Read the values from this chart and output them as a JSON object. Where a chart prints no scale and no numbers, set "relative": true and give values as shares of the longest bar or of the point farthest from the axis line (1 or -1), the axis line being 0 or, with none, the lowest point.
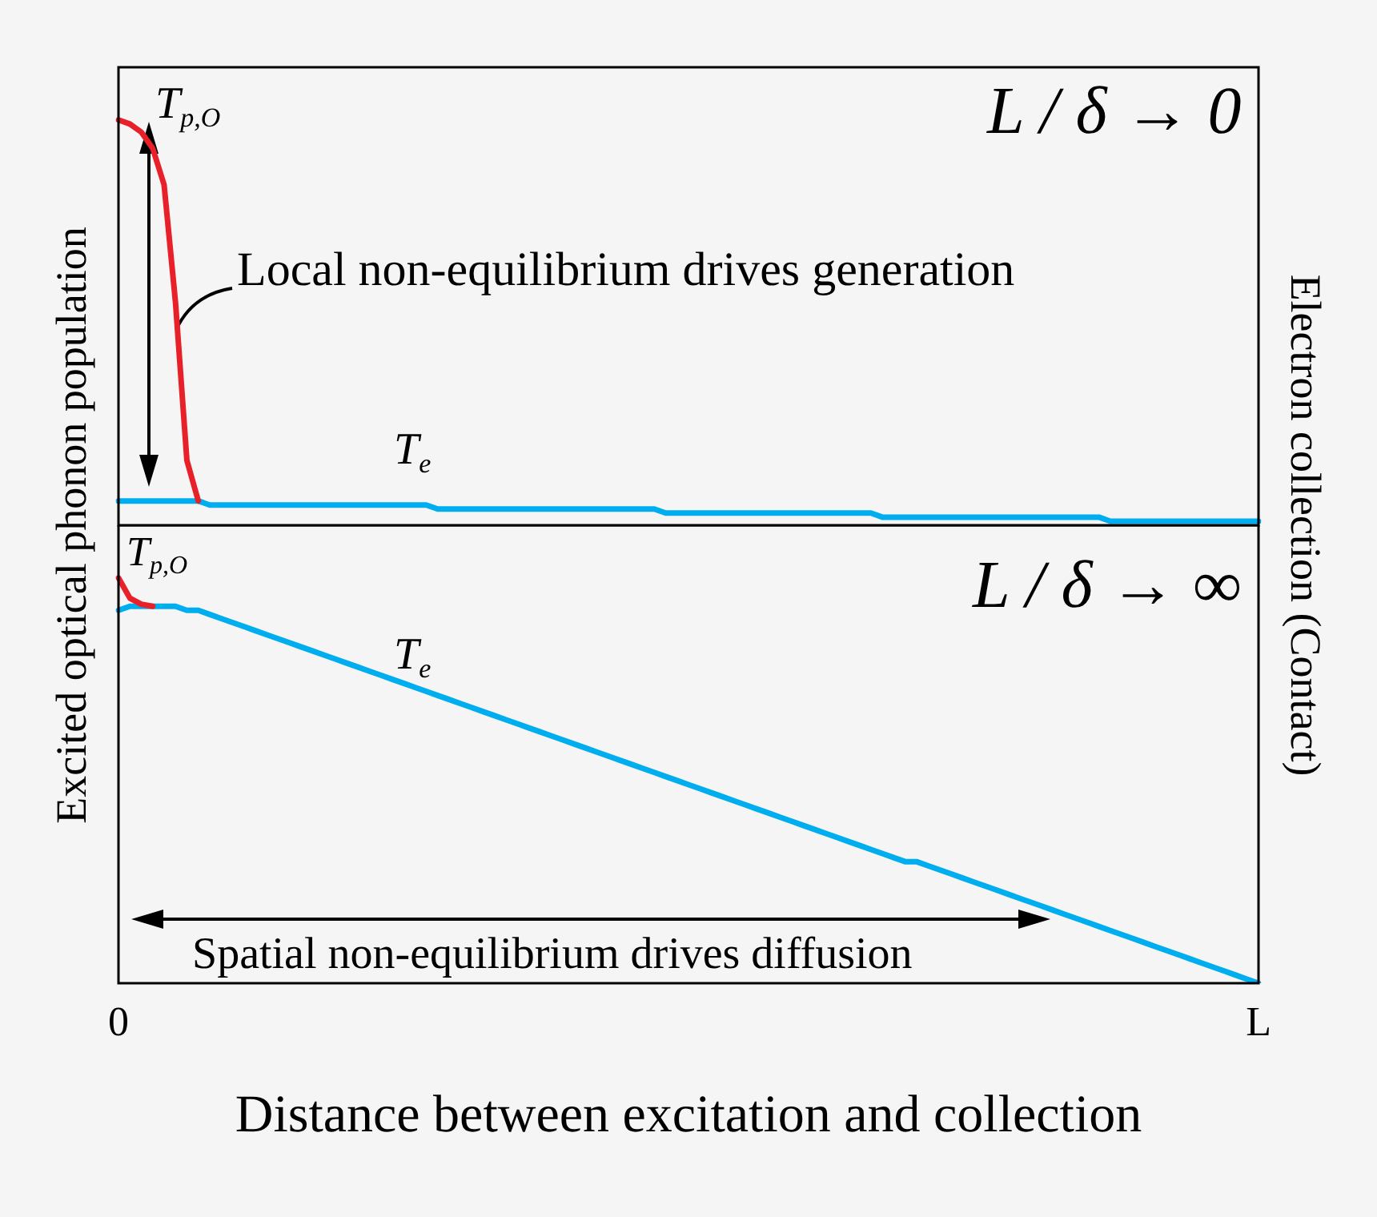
{
  "chart_data": [
    {
      "type": "line",
      "relative": true,
      "ylabel": "Excited optical phonon population",
      "y2label": "Electron collection (Contact)",
      "tick_labels": false,
      "legend": false,
      "grid": false,
      "categories": [
        null,
        null,
        null,
        null,
        null,
        null,
        null,
        null,
        null,
        null,
        null,
        null,
        null,
        null,
        null,
        null,
        null,
        null,
        null,
        null,
        null,
        null,
        null,
        null,
        null,
        null,
        null,
        null,
        null,
        null,
        null,
        null,
        null,
        null,
        null,
        null,
        null,
        null,
        null,
        null,
        null,
        null,
        null,
        null,
        null,
        null,
        null,
        null,
        null,
        null,
        null,
        null,
        null,
        null,
        null,
        null,
        null,
        null,
        null,
        null,
        null,
        null,
        null,
        null,
        null,
        null,
        null,
        null,
        null,
        null,
        null,
        null,
        null,
        null,
        null,
        null,
        null,
        null,
        null,
        null,
        null,
        null,
        null,
        null,
        null,
        null,
        null,
        null,
        null,
        null,
        null,
        null,
        null,
        null,
        null,
        null,
        null,
        null,
        null,
        null,
        null
      ],
      "annotations": [
        "L / δ → 0",
        "Local non-equilibrium drives generation",
        "T$_{p,O}$",
        "T$_{e}$"
      ],
      "series": [
        {
          "color": "#e8202a",
          "values": [
            1,
            0.99,
            0.97,
            0.93,
            0.84,
            0.55,
            0.16,
            0.06,
            null,
            null,
            null,
            null,
            null,
            null,
            null,
            null,
            null,
            null,
            null,
            null,
            null,
            null,
            null,
            null,
            null,
            null,
            null,
            null,
            null,
            null,
            null,
            null,
            null,
            null,
            null,
            null,
            null,
            null,
            null,
            null,
            null,
            null,
            null,
            null,
            null,
            null,
            null,
            null,
            null,
            null,
            null,
            null,
            null,
            null,
            null,
            null,
            null,
            null,
            null,
            null,
            null,
            null,
            null,
            null,
            null,
            null,
            null,
            null,
            null,
            null,
            null,
            null,
            null,
            null,
            null,
            null,
            null,
            null,
            null,
            null,
            null,
            null,
            null,
            null,
            null,
            null,
            null,
            null,
            null,
            null,
            null,
            null,
            null,
            null,
            null,
            null,
            null,
            null,
            null,
            null,
            null
          ]
        },
        {
          "color": "#00aeef",
          "values": [
            0.06,
            0.06,
            0.06,
            0.06,
            0.06,
            0.06,
            0.06,
            0.06,
            0.05,
            0.05,
            0.05,
            0.05,
            0.05,
            0.05,
            0.05,
            0.05,
            0.05,
            0.05,
            0.05,
            0.05,
            0.05,
            0.05,
            0.05,
            0.05,
            0.05,
            0.05,
            0.05,
            0.05,
            0.04,
            0.04,
            0.04,
            0.04,
            0.04,
            0.04,
            0.04,
            0.04,
            0.04,
            0.04,
            0.04,
            0.04,
            0.04,
            0.04,
            0.04,
            0.04,
            0.04,
            0.04,
            0.04,
            0.04,
            0.03,
            0.03,
            0.03,
            0.03,
            0.03,
            0.03,
            0.03,
            0.03,
            0.03,
            0.03,
            0.03,
            0.03,
            0.03,
            0.03,
            0.03,
            0.03,
            0.03,
            0.03,
            0.03,
            0.02,
            0.02,
            0.02,
            0.02,
            0.02,
            0.02,
            0.02,
            0.02,
            0.02,
            0.02,
            0.02,
            0.02,
            0.02,
            0.02,
            0.02,
            0.02,
            0.02,
            0.02,
            0.02,
            0.02,
            0.01,
            0.01,
            0.01,
            0.01,
            0.01,
            0.01,
            0.01,
            0.01,
            0.01,
            0.01,
            0.01,
            0.01,
            0.01,
            0.01
          ]
        }
      ]
    },
    {
      "type": "line",
      "relative": true,
      "xlabel": "Distance between excitation and collection",
      "tick_labels": "x",
      "legend": false,
      "grid": false,
      "categories": [
        "0",
        null,
        null,
        null,
        null,
        null,
        null,
        null,
        null,
        null,
        null,
        null,
        null,
        null,
        null,
        null,
        null,
        null,
        null,
        null,
        null,
        null,
        null,
        null,
        null,
        null,
        null,
        null,
        null,
        null,
        null,
        null,
        null,
        null,
        null,
        null,
        null,
        null,
        null,
        null,
        null,
        null,
        null,
        null,
        null,
        null,
        null,
        null,
        null,
        null,
        null,
        null,
        null,
        null,
        null,
        null,
        null,
        null,
        null,
        null,
        null,
        null,
        null,
        null,
        null,
        null,
        null,
        null,
        null,
        null,
        null,
        null,
        null,
        null,
        null,
        null,
        null,
        null,
        null,
        null,
        null,
        null,
        null,
        null,
        null,
        null,
        null,
        null,
        null,
        null,
        null,
        null,
        null,
        null,
        null,
        null,
        null,
        null,
        null,
        null,
        "L"
      ],
      "annotations": [
        "L / δ → ∞",
        "Spatial non-equilibrium drives diffusion",
        "T$_{p,O}$",
        "T$_{e}$"
      ],
      "series": [
        {
          "color": "#e8202a",
          "values": [
            1,
            0.95,
            0.935,
            0.93,
            null,
            null,
            null,
            null,
            null,
            null,
            null,
            null,
            null,
            null,
            null,
            null,
            null,
            null,
            null,
            null,
            null,
            null,
            null,
            null,
            null,
            null,
            null,
            null,
            null,
            null,
            null,
            null,
            null,
            null,
            null,
            null,
            null,
            null,
            null,
            null,
            null,
            null,
            null,
            null,
            null,
            null,
            null,
            null,
            null,
            null,
            null,
            null,
            null,
            null,
            null,
            null,
            null,
            null,
            null,
            null,
            null,
            null,
            null,
            null,
            null,
            null,
            null,
            null,
            null,
            null,
            null,
            null,
            null,
            null,
            null,
            null,
            null,
            null,
            null,
            null,
            null,
            null,
            null,
            null,
            null,
            null,
            null,
            null,
            null,
            null,
            null,
            null,
            null,
            null,
            null,
            null,
            null,
            null,
            null,
            null,
            null
          ]
        },
        {
          "color": "#00aeef",
          "values": [
            0.92,
            0.93,
            0.93,
            0.93,
            0.93,
            0.93,
            0.92,
            0.92,
            0.91,
            0.9,
            0.89,
            0.88,
            0.87,
            0.86,
            0.85,
            0.84,
            0.83,
            0.82,
            0.81,
            0.8,
            0.79,
            0.78,
            0.77,
            0.76,
            0.75,
            0.74,
            0.73,
            0.72,
            0.71,
            0.7,
            0.69,
            0.68,
            0.67,
            0.66,
            0.65,
            0.64,
            0.63,
            0.62,
            0.61,
            0.6,
            0.59,
            0.58,
            0.57,
            0.56,
            0.55,
            0.54,
            0.53,
            0.52,
            0.51,
            0.5,
            0.49,
            0.48,
            0.47,
            0.46,
            0.45,
            0.44,
            0.43,
            0.42,
            0.41,
            0.4,
            0.39,
            0.38,
            0.37,
            0.36,
            0.35,
            0.34,
            0.33,
            0.32,
            0.31,
            0.3,
            0.3,
            0.29,
            0.28,
            0.27,
            0.26,
            0.25,
            0.24,
            0.23,
            0.22,
            0.21,
            0.2,
            0.19,
            0.18,
            0.17,
            0.16,
            0.15,
            0.14,
            0.13,
            0.12,
            0.11,
            0.1,
            0.09,
            0.08,
            0.07,
            0.06,
            0.05,
            0.04,
            0.03,
            0.02,
            0.01,
            0
          ]
        }
      ]
    }
  ]
}
